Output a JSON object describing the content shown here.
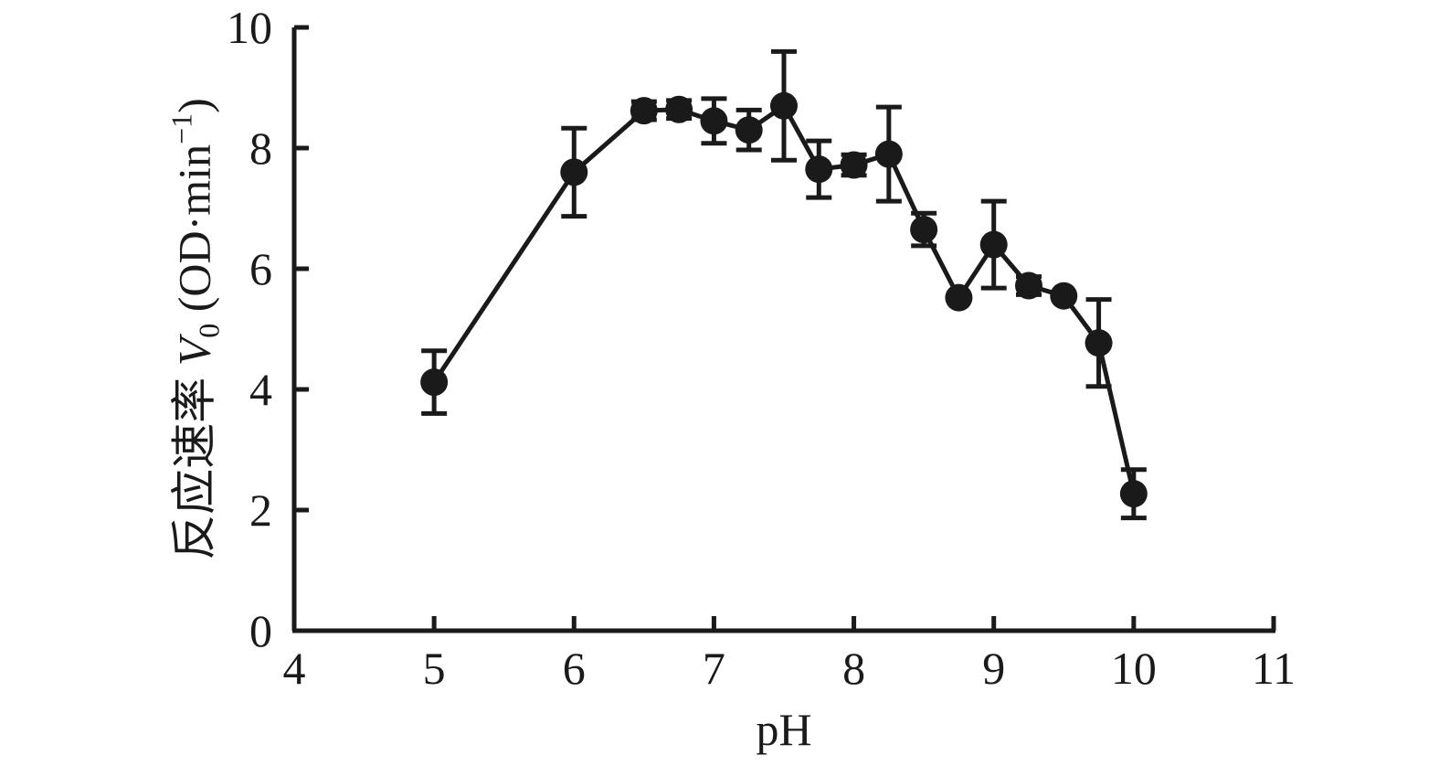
{
  "chart_data": {
    "type": "line",
    "title": "",
    "xlabel": "pH",
    "ylabel_parts": {
      "main": "反应速率 ",
      "v": "V",
      "v_sub": "0",
      "unit_open": " (OD·min",
      "unit_sup": "−1",
      "unit_close": ")"
    },
    "xlim": [
      4,
      11
    ],
    "ylim": [
      0,
      10
    ],
    "x_ticks": [
      4,
      5,
      6,
      7,
      8,
      9,
      10,
      11
    ],
    "y_ticks": [
      0,
      2,
      4,
      6,
      8,
      10
    ],
    "grid": false,
    "legend": "none",
    "series": [
      {
        "x": [
          5.0,
          6.0,
          6.5,
          6.75,
          7.0,
          7.25,
          7.5,
          7.75,
          8.0,
          8.25,
          8.5,
          8.75,
          9.0,
          9.25,
          9.5,
          9.75,
          10.0
        ],
        "y": [
          4.12,
          7.6,
          8.62,
          8.64,
          8.45,
          8.3,
          8.7,
          7.65,
          7.72,
          7.9,
          6.65,
          5.52,
          6.4,
          5.72,
          5.55,
          4.77,
          2.27
        ],
        "err": [
          0.52,
          0.73,
          0.15,
          0.15,
          0.37,
          0.33,
          0.9,
          0.47,
          0.17,
          0.78,
          0.27,
          0.0,
          0.72,
          0.15,
          0.0,
          0.72,
          0.4
        ]
      }
    ],
    "colors": {
      "line": "#1a1a1a",
      "marker": "#1a1a1a"
    }
  }
}
